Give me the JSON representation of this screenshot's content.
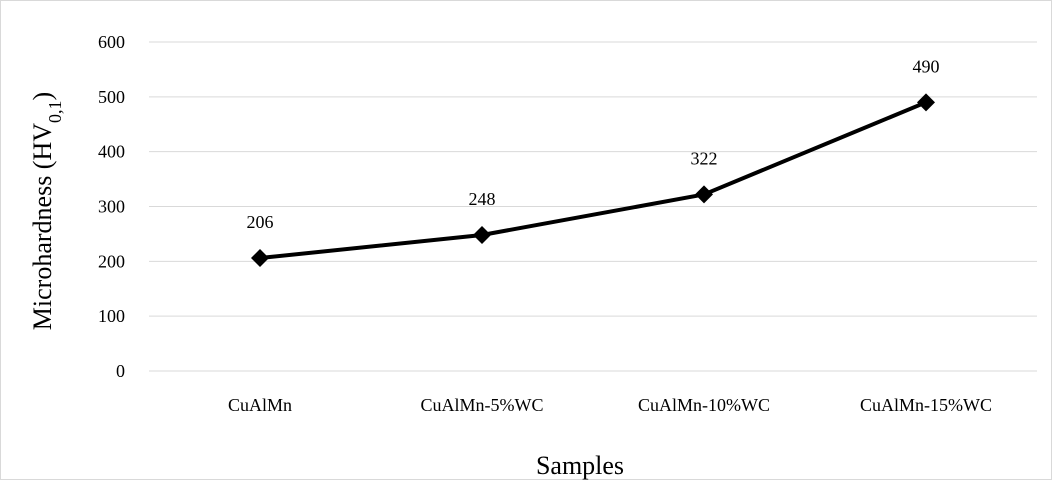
{
  "chart_data": {
    "type": "line",
    "categories": [
      "CuAlMn",
      "CuAlMn-5%WC",
      "CuAlMn-10%WC",
      "CuAlMn-15%WC"
    ],
    "series": [
      {
        "values": [
          206,
          248,
          322,
          490
        ],
        "marker": "diamond",
        "color": "#000000"
      }
    ],
    "data_labels": [
      "206",
      "248",
      "322",
      "490"
    ],
    "xlabel": "Samples",
    "ylabel_main": "Microhardness  (HV",
    "ylabel_sub": "0,1",
    "ylabel_close": ")",
    "ylim": [
      0,
      600
    ],
    "yticks": [
      0,
      100,
      200,
      300,
      400,
      500,
      600
    ],
    "grid": true,
    "legend": "none",
    "gridline_color": "#d9d9d9",
    "line_color": "#000000"
  }
}
